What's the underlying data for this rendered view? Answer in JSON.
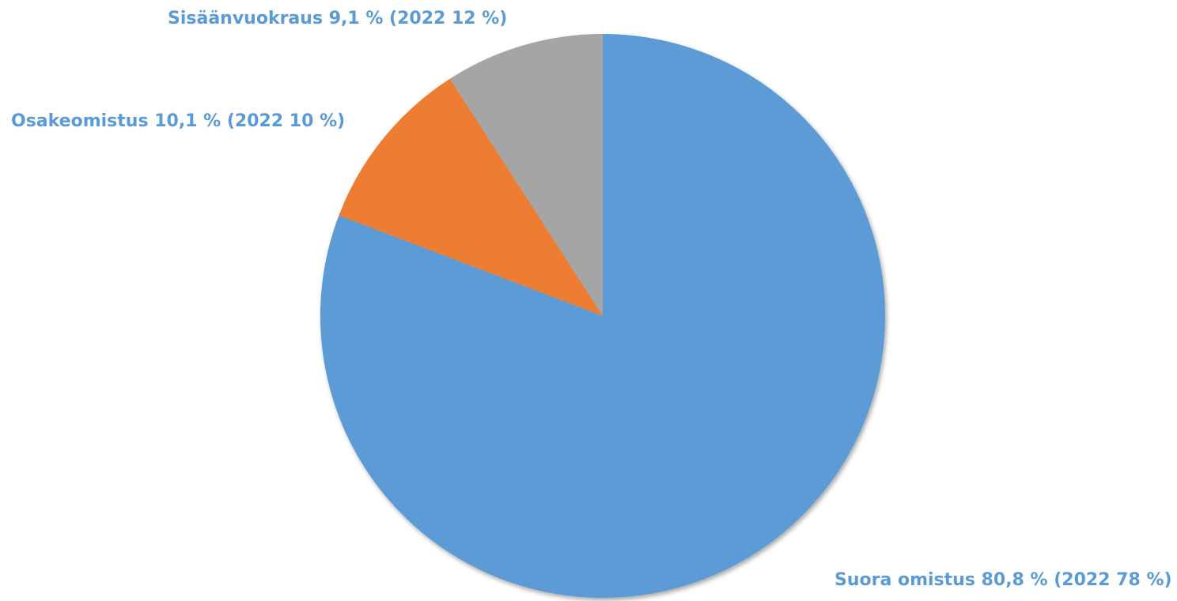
{
  "chart_data": {
    "type": "pie",
    "title": "",
    "start_angle_deg": 0,
    "direction": "clockwise",
    "slices": [
      {
        "name": "Suora omistus",
        "value": 80.8,
        "label": "Suora omistus 80,8 % (2022 78 %)",
        "color": "#5B9BD5",
        "label_color": "#5B9BD5"
      },
      {
        "name": "Osakeomistus",
        "value": 10.1,
        "label": "Osakeomistus 10,1 % (2022 10 %)",
        "color": "#ED7D31",
        "label_color": "#5B9BD5"
      },
      {
        "name": "Sisäänvuokraus",
        "value": 9.1,
        "label": "Sisäänvuokraus 9,1 % (2022 12 %)",
        "color": "#A5A5A5",
        "label_color": "#5B9BD5"
      }
    ],
    "legend": "none"
  }
}
